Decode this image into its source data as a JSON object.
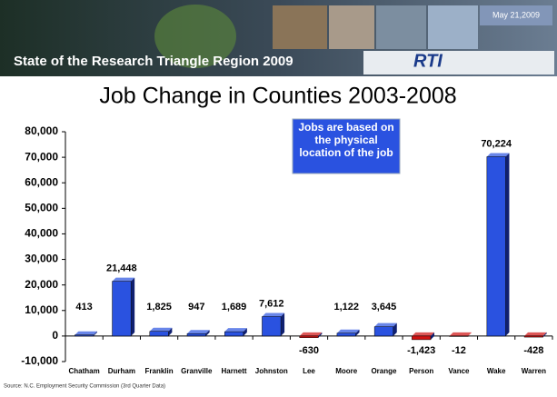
{
  "banner": {
    "subtitle": "State of the Research Triangle Region 2009",
    "date": "May 21,2009",
    "logo": "RTI"
  },
  "chart_data": {
    "type": "bar",
    "title": "Job Change in Counties 2003-2008",
    "annotation": "Jobs are based on the physical location of the job",
    "source": "Source: N.C. Employment Security Commission (3rd Quarter Data)",
    "categories": [
      "Chatham",
      "Durham",
      "Franklin",
      "Granville",
      "Harnett",
      "Johnston",
      "Lee",
      "Moore",
      "Orange",
      "Person",
      "Vance",
      "Wake",
      "Warren"
    ],
    "values": [
      413,
      21448,
      1825,
      947,
      1689,
      7612,
      -630,
      1122,
      3645,
      -1423,
      -12,
      70224,
      -428
    ],
    "value_labels": [
      "413",
      "21,448",
      "1,825",
      "947",
      "1,689",
      "7,612",
      "-630",
      "1,122",
      "3,645",
      "-1,423",
      "-12",
      "70,224",
      "-428"
    ],
    "color": "#2a52e0",
    "negative_color": "#d01010",
    "ylim": [
      -10000,
      80000
    ],
    "yticks": [
      {
        "value": -10000,
        "label": "-10,000"
      },
      0,
      {
        "value": 10000,
        "label": "10,000"
      },
      {
        "value": 20000,
        "label": "20,000"
      },
      {
        "value": 30000,
        "label": "30,000"
      },
      {
        "value": 40000,
        "label": "40,000"
      },
      {
        "value": 50000,
        "label": "50,000"
      },
      {
        "value": 60000,
        "label": "60,000"
      },
      {
        "value": 70000,
        "label": "70,000"
      },
      {
        "value": 80000,
        "label": "80,000"
      }
    ]
  }
}
